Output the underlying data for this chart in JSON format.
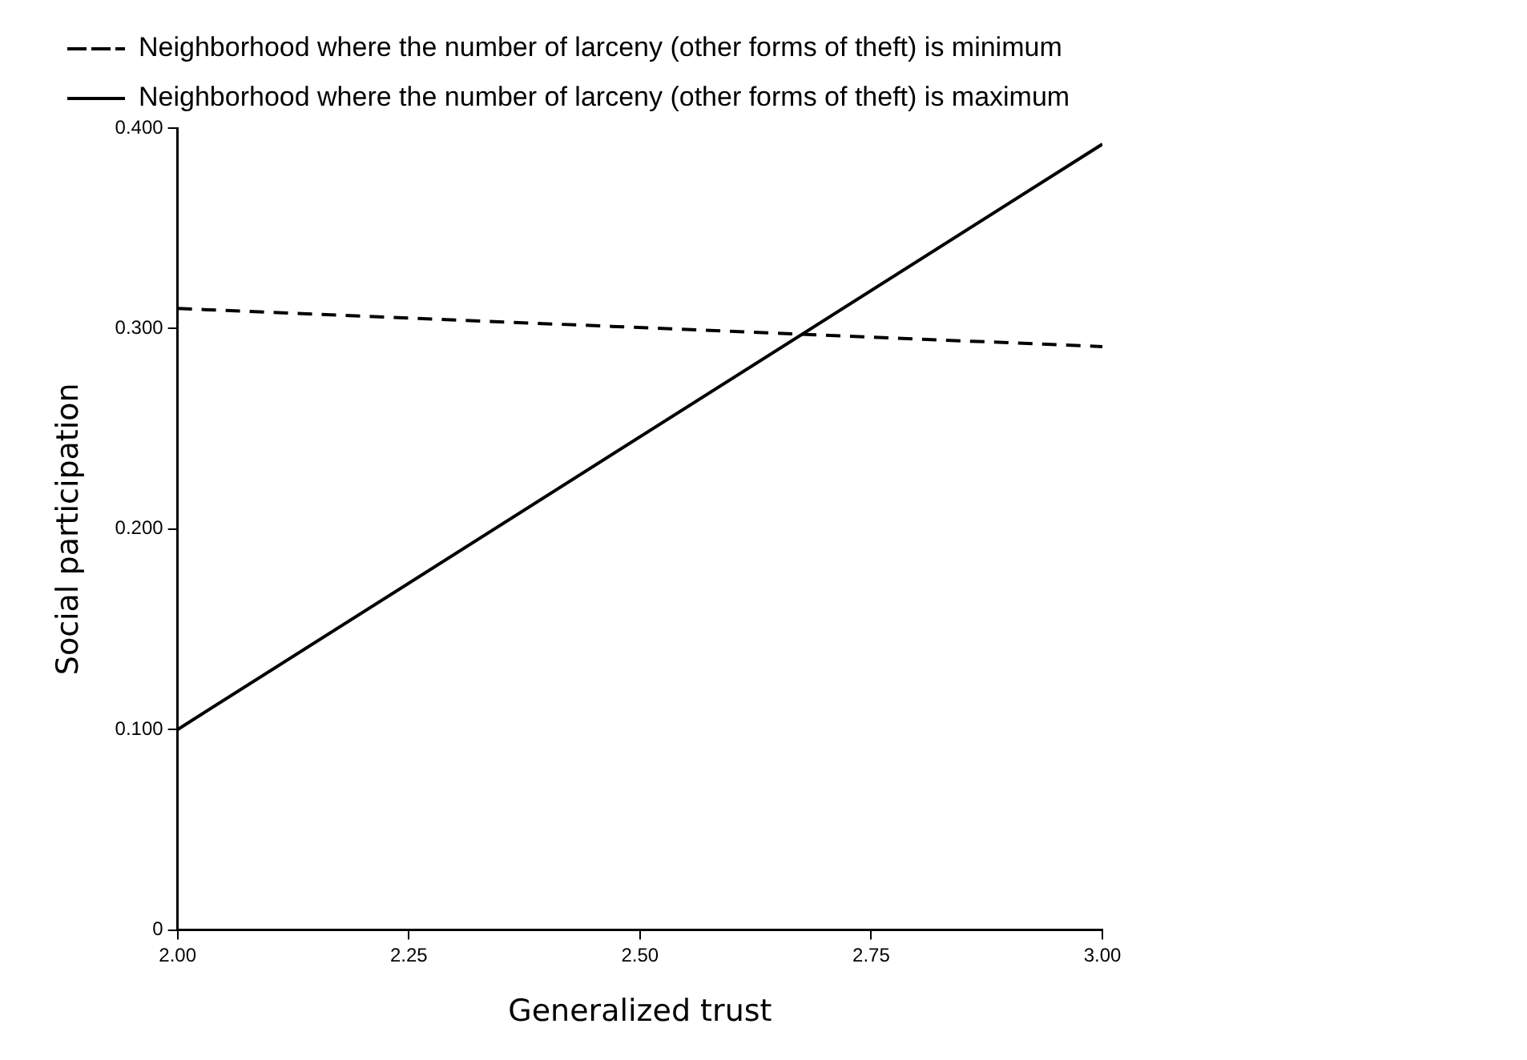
{
  "chart_data": {
    "type": "line",
    "xlabel": "Generalized trust",
    "ylabel": "Social participation",
    "x": [
      2.0,
      3.0
    ],
    "series": [
      {
        "name": "Neighborhood where the number of larceny (other forms of theft) is minimum",
        "color": "#000000",
        "line_style": "dashed",
        "values": [
          0.31,
          0.291
        ]
      },
      {
        "name": "Neighborhood where the number of larceny (other forms of theft) is maximum",
        "color": "#000000",
        "line_style": "solid",
        "values": [
          0.1,
          0.392
        ]
      }
    ],
    "xlim": [
      2.0,
      3.0
    ],
    "xticks": [
      {
        "value": 2.0,
        "label": "2.00"
      },
      {
        "value": 2.25,
        "label": "2.25"
      },
      {
        "value": 2.5,
        "label": "2.50"
      },
      {
        "value": 2.75,
        "label": "2.75"
      },
      {
        "value": 3.0,
        "label": "3.00"
      }
    ],
    "ylim": [
      0,
      0.4
    ],
    "yticks": [
      0,
      {
        "value": 0.1,
        "label": "0.100"
      },
      {
        "value": 0.2,
        "label": "0.200"
      },
      {
        "value": 0.3,
        "label": "0.300"
      },
      {
        "value": 0.4,
        "label": "0.400"
      }
    ],
    "grid": false,
    "legend": "top left",
    "marker": "none"
  }
}
